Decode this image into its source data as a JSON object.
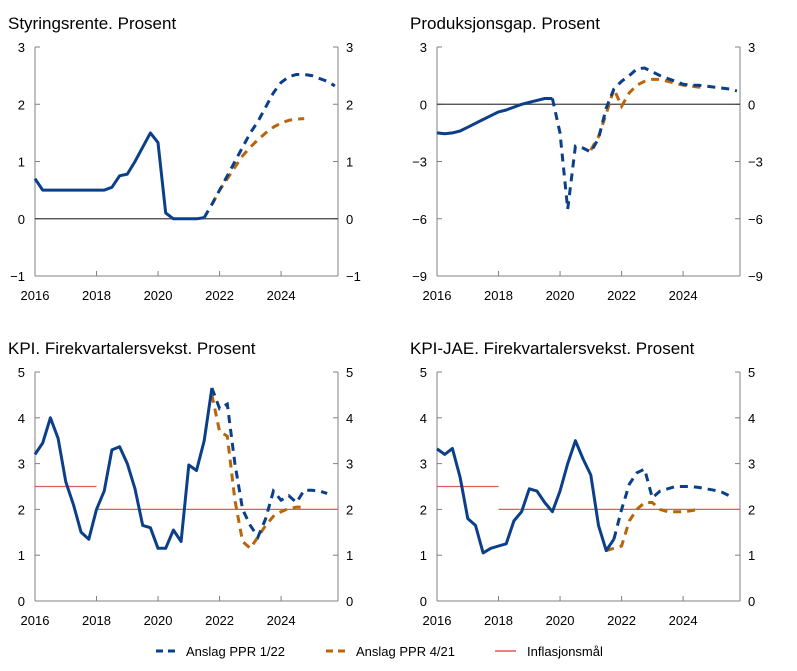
{
  "colors": {
    "ppr_1_22": "#0b3f8a",
    "ppr_4_21": "#b8650c",
    "target": "#e05a5a",
    "axis": "#808080",
    "zero": "#404040"
  },
  "legend": [
    {
      "label": "Anslag PPR 1/22",
      "key": "ppr_1_22",
      "style": "dashed"
    },
    {
      "label": "Anslag PPR 4/21",
      "key": "ppr_4_21",
      "style": "dashed"
    },
    {
      "label": "Inflasjonsmål",
      "key": "target",
      "style": "solid"
    }
  ],
  "chart_data": [
    {
      "type": "line",
      "title": "Styringsrente. Prosent",
      "xlim": [
        2016,
        2025.85
      ],
      "xticks": [
        "2016",
        "2018",
        "2020",
        "2022",
        "2024"
      ],
      "ylim": [
        -1,
        3
      ],
      "yticks": [
        "−1",
        "0",
        "1",
        "2",
        "3"
      ],
      "yvals": [
        -1,
        0,
        1,
        2,
        3
      ],
      "zero_line": true,
      "series": [
        {
          "name": "Anslag PPR 1/22",
          "key": "ppr_1_22",
          "start": 2016,
          "step": 0.25,
          "forecast_start": 2021.5,
          "values": [
            0.7,
            0.5,
            0.5,
            0.5,
            0.5,
            0.5,
            0.5,
            0.5,
            0.5,
            0.5,
            0.55,
            0.75,
            0.78,
            1.0,
            1.25,
            1.5,
            1.33,
            0.1,
            0,
            0,
            0,
            0,
            0.02,
            0.25,
            0.5,
            0.75,
            1.0,
            1.25,
            1.5,
            1.7,
            1.95,
            2.2,
            2.38,
            2.48,
            2.52,
            2.52,
            2.5,
            2.45,
            2.4,
            2.32
          ]
        },
        {
          "name": "Anslag PPR 4/21",
          "key": "ppr_4_21",
          "start": 2021.75,
          "step": 0.25,
          "forecast_start": 2021.75,
          "values": [
            0.25,
            0.5,
            0.7,
            0.9,
            1.1,
            1.25,
            1.38,
            1.5,
            1.6,
            1.67,
            1.72,
            1.74,
            1.75
          ]
        }
      ]
    },
    {
      "type": "line",
      "title": "Produksjonsgap. Prosent",
      "xlim": [
        2016,
        2025.85
      ],
      "xticks": [
        "2016",
        "2018",
        "2020",
        "2022",
        "2024"
      ],
      "ylim": [
        -9,
        3
      ],
      "yticks": [
        "−9",
        "−6",
        "−3",
        "0",
        "3"
      ],
      "yvals": [
        -9,
        -6,
        -3,
        0,
        3
      ],
      "zero_line": true,
      "series": [
        {
          "name": "Anslag PPR 1/22",
          "key": "ppr_1_22",
          "start": 2016,
          "step": 0.25,
          "forecast_start": 2019.75,
          "values": [
            -1.5,
            -1.55,
            -1.5,
            -1.4,
            -1.2,
            -1.0,
            -0.8,
            -0.6,
            -0.4,
            -0.3,
            -0.15,
            0,
            0.1,
            0.2,
            0.3,
            0.3,
            -1.5,
            -5.5,
            -2.2,
            -2.3,
            -2.5,
            -1.8,
            -0.2,
            0.8,
            1.2,
            1.5,
            1.85,
            1.9,
            1.7,
            1.5,
            1.35,
            1.2,
            1.05,
            1.0,
            1.0,
            0.95,
            0.9,
            0.85,
            0.8,
            0.7
          ]
        },
        {
          "name": "Anslag PPR 4/21",
          "key": "ppr_4_21",
          "start": 2021.0,
          "step": 0.25,
          "forecast_start": 2021.0,
          "values": [
            -2.4,
            -1.7,
            -0.5,
            0.8,
            -0.1,
            0.6,
            1.0,
            1.2,
            1.3,
            1.3,
            1.2,
            1.1,
            1.0,
            0.95,
            0.9,
            0.9
          ]
        }
      ]
    },
    {
      "type": "line",
      "title": "KPI. Firekvartalersvekst. Prosent",
      "xlim": [
        2016,
        2025.85
      ],
      "xticks": [
        "2016",
        "2018",
        "2020",
        "2022",
        "2024"
      ],
      "ylim": [
        0,
        5
      ],
      "yticks": [
        "0",
        "1",
        "2",
        "3",
        "4",
        "5"
      ],
      "yvals": [
        0,
        1,
        2,
        3,
        4,
        5
      ],
      "zero_line": false,
      "target": [
        {
          "from": 2016,
          "to": 2018,
          "value": 2.5
        },
        {
          "from": 2018,
          "to": 2025.85,
          "value": 2.0
        }
      ],
      "series": [
        {
          "name": "Anslag PPR 1/22",
          "key": "ppr_1_22",
          "start": 2016,
          "step": 0.25,
          "forecast_start": 2021.75,
          "values": [
            3.2,
            3.45,
            4.0,
            3.55,
            2.6,
            2.1,
            1.5,
            1.35,
            2.0,
            2.4,
            3.3,
            3.37,
            3.0,
            2.45,
            1.65,
            1.6,
            1.15,
            1.15,
            1.55,
            1.3,
            2.97,
            2.85,
            3.5,
            4.65,
            4.2,
            4.3,
            3.0,
            2.0,
            1.65,
            1.4,
            1.8,
            2.4,
            2.2,
            2.3,
            2.15,
            2.42,
            2.42,
            2.4,
            2.35
          ]
        },
        {
          "name": "Anslag PPR 4/21",
          "key": "ppr_4_21",
          "start": 2021.75,
          "step": 0.25,
          "forecast_start": 2021.75,
          "values": [
            4.5,
            3.7,
            3.6,
            2.2,
            1.3,
            1.15,
            1.4,
            1.65,
            1.85,
            1.95,
            2.02,
            2.05,
            2.05
          ]
        }
      ]
    },
    {
      "type": "line",
      "title": "KPI-JAE. Firekvartalersvekst. Prosent",
      "xlim": [
        2016,
        2025.85
      ],
      "xticks": [
        "2016",
        "2018",
        "2020",
        "2022",
        "2024"
      ],
      "ylim": [
        0,
        5
      ],
      "yticks": [
        "0",
        "1",
        "2",
        "3",
        "4",
        "5"
      ],
      "yvals": [
        0,
        1,
        2,
        3,
        4,
        5
      ],
      "zero_line": false,
      "target": [
        {
          "from": 2016,
          "to": 2018,
          "value": 2.5
        },
        {
          "from": 2018,
          "to": 2025.85,
          "value": 2.0
        }
      ],
      "series": [
        {
          "name": "Anslag PPR 1/22",
          "key": "ppr_1_22",
          "start": 2016,
          "step": 0.25,
          "forecast_start": 2021.75,
          "values": [
            3.32,
            3.2,
            3.33,
            2.7,
            1.8,
            1.65,
            1.05,
            1.15,
            1.2,
            1.25,
            1.75,
            1.95,
            2.45,
            2.4,
            2.15,
            1.95,
            2.4,
            3.0,
            3.5,
            3.1,
            2.75,
            1.65,
            1.1,
            1.35,
            2.0,
            2.55,
            2.8,
            2.88,
            2.25,
            2.4,
            2.45,
            2.5,
            2.5,
            2.5,
            2.48,
            2.45,
            2.42,
            2.38,
            2.3
          ]
        },
        {
          "name": "Anslag PPR 4/21",
          "key": "ppr_4_21",
          "start": 2021.5,
          "step": 0.25,
          "forecast_start": 2021.5,
          "values": [
            1.1,
            1.15,
            1.2,
            1.75,
            2.0,
            2.15,
            2.15,
            2.0,
            1.95,
            1.95,
            1.95,
            1.97,
            2.0
          ]
        }
      ]
    }
  ]
}
